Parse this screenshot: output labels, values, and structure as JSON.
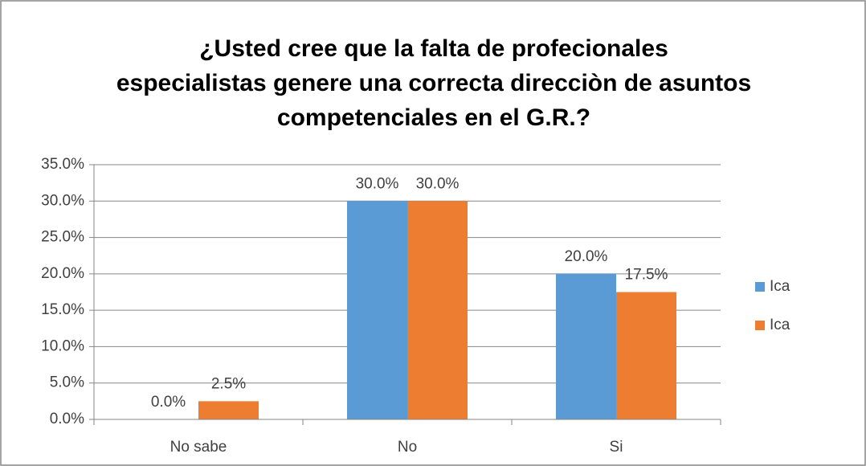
{
  "chart_data": {
    "type": "bar",
    "title": [
      "¿Usted cree que la falta de profecionales",
      "especialistas genere una correcta direcciòn de asuntos",
      "competenciales en el G.R.?"
    ],
    "categories": [
      "No sabe",
      "No",
      "Si"
    ],
    "series": [
      {
        "name": "Ica",
        "color": "#5b9bd5",
        "values": [
          0,
          30,
          20
        ],
        "value_labels": [
          "0.0%",
          "30.0%",
          "20.0%"
        ]
      },
      {
        "name": "Ica",
        "color": "#ed7d31",
        "values": [
          2.5,
          30,
          17.5
        ],
        "value_labels": [
          "2.5%",
          "30.0%",
          "17.5%"
        ]
      }
    ],
    "ylim": [
      0,
      35
    ],
    "yticks": [
      {
        "value": 0,
        "label": "0.0%"
      },
      {
        "value": 5,
        "label": "5.0%"
      },
      {
        "value": 10,
        "label": "10.0%"
      },
      {
        "value": 15,
        "label": "15.0%"
      },
      {
        "value": 20,
        "label": "20.0%"
      },
      {
        "value": 25,
        "label": "25.0%"
      },
      {
        "value": 30,
        "label": "30.0%"
      },
      {
        "value": 35,
        "label": "35.0%"
      }
    ],
    "grid": true,
    "legend": "right"
  }
}
